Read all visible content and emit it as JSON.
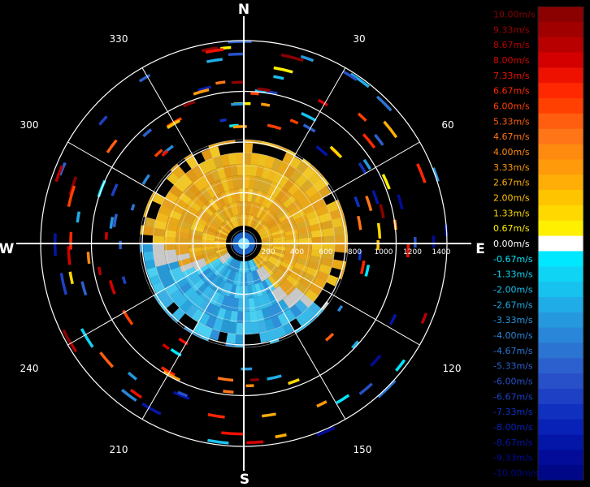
{
  "chart_data": {
    "type": "heatmap",
    "subtype": "polar doppler radial velocity",
    "cardinals": {
      "north": "N",
      "east": "E",
      "south": "S",
      "west": "W"
    },
    "bearing_labels": [
      "30",
      "60",
      "120",
      "150",
      "210",
      "240",
      "300",
      "330"
    ],
    "range_labels": [
      "200",
      "400",
      "600",
      "800",
      "1000",
      "1200",
      "1400"
    ],
    "ring_count": 4,
    "fine_ring_count": 8,
    "colorbar": {
      "labels": [
        "10.00m/s",
        "9.33m/s",
        "8.67m/s",
        "8.00m/s",
        "7.33m/s",
        "6.67m/s",
        "6.00m/s",
        "5.33m/s",
        "4.67m/s",
        "4.00m/s",
        "3.33m/s",
        "2.67m/s",
        "2.00m/s",
        "1.33m/s",
        "0.67m/s",
        "0.00m/s",
        "-0.67m/s",
        "-1.33m/s",
        "-2.00m/s",
        "-2.67m/s",
        "-3.33m/s",
        "-4.00m/s",
        "-4.67m/s",
        "-5.33m/s",
        "-6.00m/s",
        "-6.67m/s",
        "-7.33m/s",
        "-8.00m/s",
        "-8.67m/s",
        "-9.33m/s",
        "-10.00m/s"
      ],
      "colors": [
        "#8b0000",
        "#a00000",
        "#b80000",
        "#d40000",
        "#ee1100",
        "#ff2800",
        "#ff4000",
        "#ff5e10",
        "#ff7518",
        "#ff8a10",
        "#ff9a0a",
        "#ffae08",
        "#ffc400",
        "#ffd800",
        "#fff000",
        "#ffffff",
        "#00e8ff",
        "#10d4f4",
        "#18c2ee",
        "#20ace6",
        "#2698de",
        "#2a86d8",
        "#2c74d2",
        "#2c60ce",
        "#2850c8",
        "#1e40c4",
        "#1030c0",
        "#0822b8",
        "#0416a8",
        "#020c98",
        "#000888"
      ]
    },
    "velocity_field": {
      "inbound_sector_deg": [
        255,
        135
      ],
      "inbound_color": "#e8b020",
      "outbound_color": "#30b0e0"
    },
    "grid": true
  }
}
